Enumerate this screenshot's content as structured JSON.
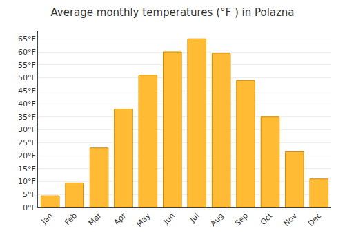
{
  "chart_data": {
    "type": "bar",
    "title": "Average monthly temperatures (°F ) in Polazna",
    "categories": [
      "Jan",
      "Feb",
      "Mar",
      "Apr",
      "May",
      "Jun",
      "Jul",
      "Aug",
      "Sep",
      "Oct",
      "Nov",
      "Dec"
    ],
    "values": [
      4.5,
      9.5,
      23.0,
      38.0,
      51.0,
      60.0,
      65.0,
      59.5,
      49.0,
      35.0,
      21.5,
      11.0
    ],
    "color": "#FFBB33",
    "ylim": [
      0,
      68
    ],
    "yticks": [
      {
        "value": 0,
        "label": "0°F"
      },
      {
        "value": 5,
        "label": "5°F"
      },
      {
        "value": 10,
        "label": "10°F"
      },
      {
        "value": 15,
        "label": "15°F"
      },
      {
        "value": 20,
        "label": "20°F"
      },
      {
        "value": 25,
        "label": "25°F"
      },
      {
        "value": 30,
        "label": "30°F"
      },
      {
        "value": 35,
        "label": "35°F"
      },
      {
        "value": 40,
        "label": "40°F"
      },
      {
        "value": 45,
        "label": "45°F"
      },
      {
        "value": 50,
        "label": "50°F"
      },
      {
        "value": 55,
        "label": "55°F"
      },
      {
        "value": 60,
        "label": "60°F"
      },
      {
        "value": 65,
        "label": "65°F"
      }
    ],
    "grid": true
  }
}
